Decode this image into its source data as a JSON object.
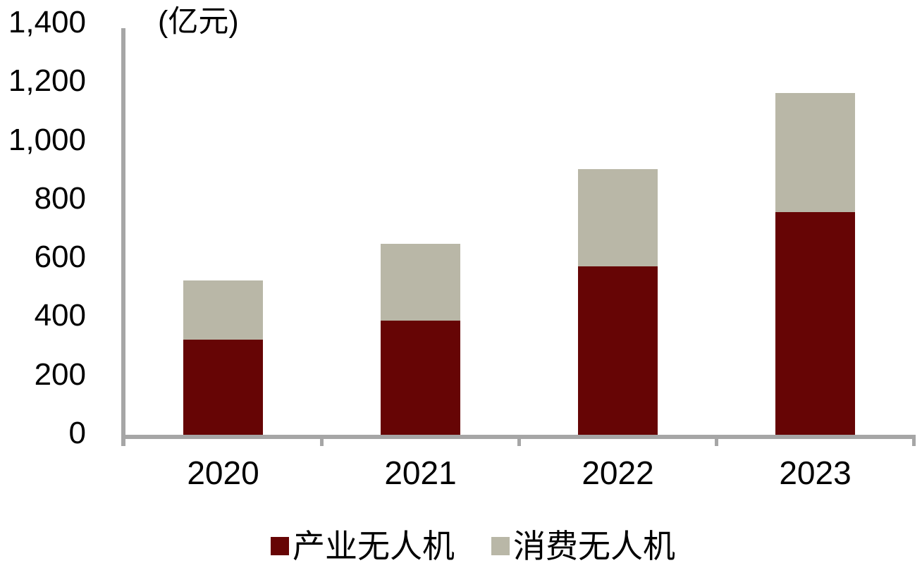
{
  "chart_data": {
    "type": "bar",
    "stacked": true,
    "title": "",
    "unit_label": "(亿元)",
    "xlabel": "",
    "ylabel": "",
    "categories": [
      "2020",
      "2021",
      "2022",
      "2023"
    ],
    "series": [
      {
        "key": "industrial-uav",
        "name": "产业无人机",
        "color": "#660505",
        "values": [
          325,
          390,
          575,
          760
        ]
      },
      {
        "key": "consumer-uav",
        "name": "消费无人机",
        "color": "#B9B7A7",
        "values": [
          200,
          260,
          330,
          405
        ]
      }
    ],
    "totals": [
      525,
      650,
      905,
      1165
    ],
    "ylim": [
      0,
      1400
    ],
    "ytick_interval": 200,
    "yticks": [
      {
        "value": 0,
        "label": "0"
      },
      {
        "value": 200,
        "label": "200"
      },
      {
        "value": 400,
        "label": "400"
      },
      {
        "value": 600,
        "label": "600"
      },
      {
        "value": 800,
        "label": "800"
      },
      {
        "value": 1000,
        "label": "1,000"
      },
      {
        "value": 1200,
        "label": "1,200"
      },
      {
        "value": 1400,
        "label": "1,400"
      }
    ],
    "grid": false,
    "legend_position": "bottom",
    "colors": {
      "axis": "#A6A6A6",
      "text": "#000000",
      "background": "#FFFFFF"
    }
  }
}
